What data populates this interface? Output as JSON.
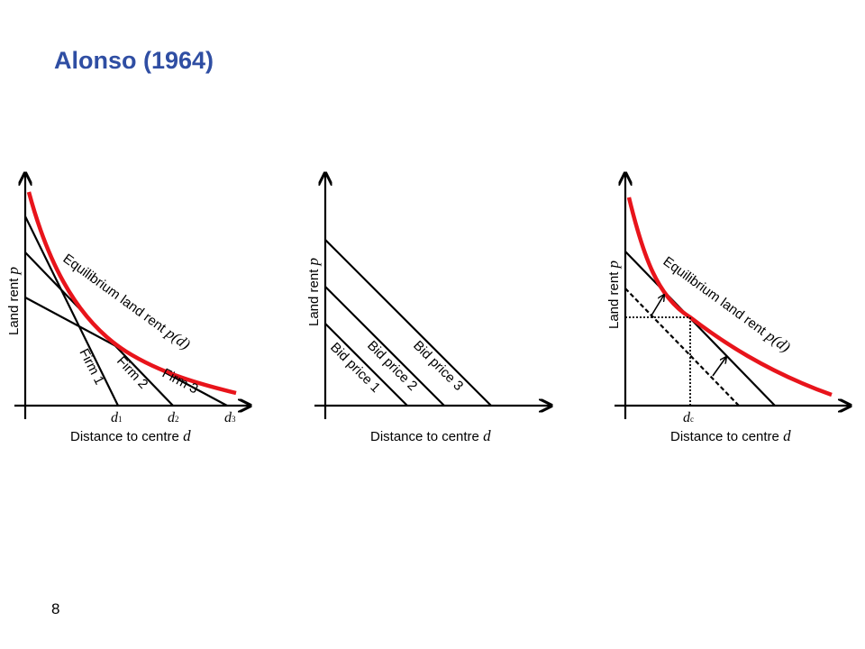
{
  "slide": {
    "title": "Alonso (1964)",
    "page_number": "8"
  },
  "colors": {
    "title": "#2f4ea3",
    "equilibrium_curve": "#e8141b",
    "lines": "#000000"
  },
  "panel1": {
    "y_axis_label": "Land rent ",
    "y_axis_var": "p",
    "x_axis_label": "Distance to centre ",
    "x_axis_var": "d",
    "curve_label": "Equilibrium land rent ",
    "curve_var": "p(d)",
    "firms": [
      "Firm 1",
      "Firm 2",
      "Firm 3"
    ],
    "ticks": [
      {
        "var": "d",
        "sub": "1"
      },
      {
        "var": "d",
        "sub": "2"
      },
      {
        "var": "d",
        "sub": "3"
      }
    ]
  },
  "panel2": {
    "y_axis_label": "Land rent ",
    "y_axis_var": "p",
    "x_axis_label": "Distance to centre ",
    "x_axis_var": "d",
    "bid_prices": [
      "Bid price 1",
      "Bid price 2",
      "Bid price 3"
    ]
  },
  "panel3": {
    "y_axis_label": "Land rent ",
    "y_axis_var": "p",
    "x_axis_label": "Distance to centre ",
    "x_axis_var": "d",
    "curve_label": "Equilibrium land rent ",
    "curve_var": "p(d)",
    "tick": {
      "var": "d",
      "sub": "c"
    }
  }
}
